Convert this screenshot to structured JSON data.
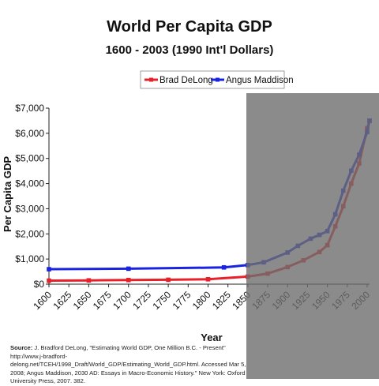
{
  "chart_data": {
    "type": "line",
    "title": "World Per Capita GDP",
    "subtitle": "1600 - 2003 (1990 Int'l Dollars)",
    "xlabel": "Year",
    "ylabel": "Per Capita GDP",
    "xlim": [
      1600,
      2003
    ],
    "ylim": [
      0,
      7000
    ],
    "x_ticks": [
      "1600",
      "1625",
      "1650",
      "1675",
      "1700",
      "1725",
      "1750",
      "1775",
      "1800",
      "1825",
      "1850",
      "1875",
      "1900",
      "1925",
      "1950",
      "1975",
      "2000"
    ],
    "y_ticks": [
      "$0",
      "$1,000",
      "$2,000",
      "$3,000",
      "$4,000",
      "$5,000",
      "$6,000",
      "$7,000"
    ],
    "grid": false,
    "legend_position": "top-right",
    "series": [
      {
        "name": "Brad DeLong",
        "color": "#e8202a",
        "x": [
          1600,
          1650,
          1700,
          1750,
          1800,
          1850,
          1875,
          1900,
          1920,
          1940,
          1950,
          1960,
          1970,
          1980,
          1990,
          2000,
          2003
        ],
        "y": [
          140,
          150,
          165,
          175,
          195,
          300,
          420,
          680,
          950,
          1280,
          1550,
          2300,
          3100,
          4000,
          4800,
          6200,
          6500
        ]
      },
      {
        "name": "Angus Maddison",
        "color": "#1a24e0",
        "x": [
          1600,
          1700,
          1820,
          1850,
          1870,
          1900,
          1913,
          1929,
          1940,
          1950,
          1960,
          1970,
          1980,
          1990,
          2000,
          2003
        ],
        "y": [
          595,
          615,
          667,
          760,
          870,
          1260,
          1525,
          1810,
          1960,
          2110,
          2780,
          3720,
          4510,
          5150,
          6050,
          6500
        ]
      }
    ]
  },
  "source": {
    "label": "Source:",
    "lines": [
      "J. Bradford DeLong, \"Estimating World GDP, One Million B.C. - Present\" http://www.j-bradford-",
      "delong.net/TCEH/1998_Draft/World_GDP/Estimating_World_GDP.html. Accessed Mar 5, 2008; Angus Maddison,",
      "2030 AD: Essays in Macro-Economic History.\" New York: Oxford University Press, 2007. 382."
    ]
  }
}
